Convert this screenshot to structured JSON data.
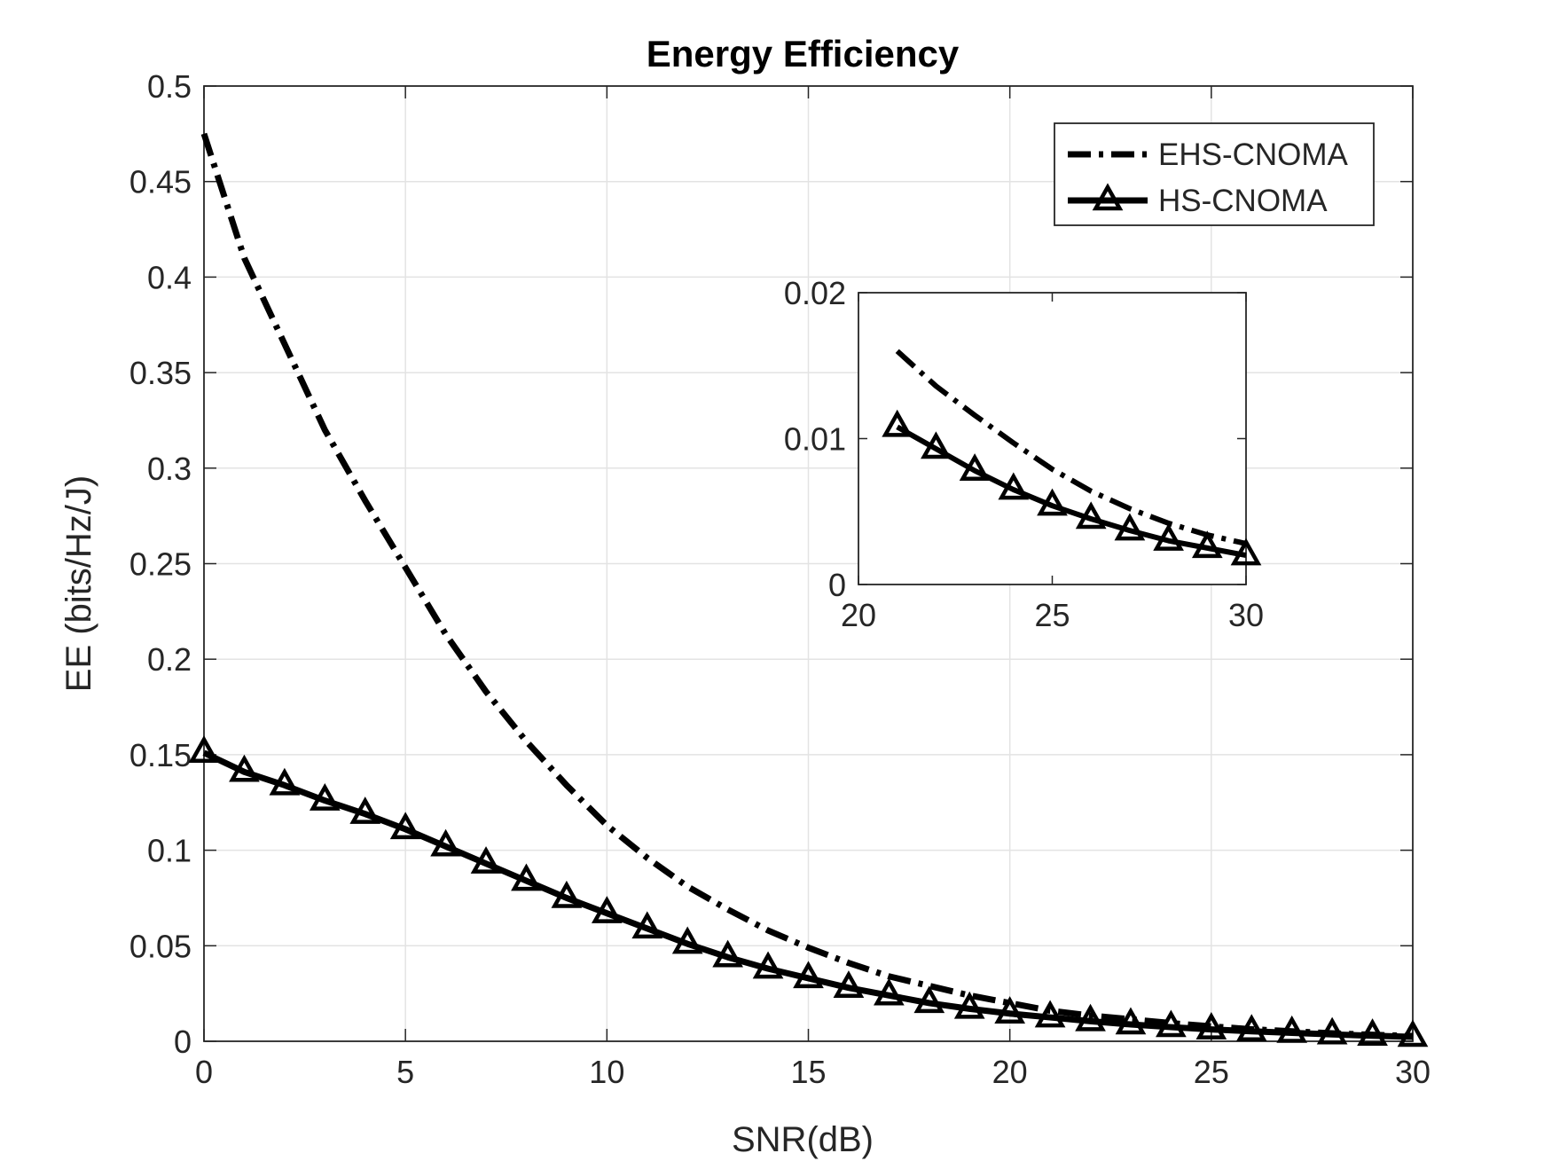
{
  "chart_data": [
    {
      "type": "line",
      "title": "Energy Efficiency",
      "xlabel": "SNR(dB)",
      "ylabel": "EE (bits/Hz/J)",
      "xlim": [
        0,
        30
      ],
      "ylim": [
        0,
        0.5
      ],
      "xticks": [
        0,
        5,
        10,
        15,
        20,
        25,
        30
      ],
      "yticks": [
        0,
        0.05,
        0.1,
        0.15,
        0.2,
        0.25,
        0.3,
        0.35,
        0.4,
        0.45,
        0.5
      ],
      "xtick_labels": [
        "0",
        "5",
        "10",
        "15",
        "20",
        "25",
        "30"
      ],
      "ytick_labels": [
        "0",
        "0.05",
        "0.1",
        "0.15",
        "0.2",
        "0.25",
        "0.3",
        "0.35",
        "0.4",
        "0.45",
        "0.5"
      ],
      "grid": true,
      "legend_position": "top-right",
      "x": [
        0,
        1,
        2,
        3,
        4,
        5,
        6,
        7,
        8,
        9,
        10,
        11,
        12,
        13,
        14,
        15,
        16,
        17,
        18,
        19,
        20,
        21,
        22,
        23,
        24,
        25,
        26,
        27,
        28,
        29,
        30
      ],
      "series": [
        {
          "name": "EHS-CNOMA",
          "line_style": "dash-dot",
          "marker": "none",
          "color": "#000000",
          "values": [
            0.475,
            0.41,
            0.365,
            0.32,
            0.283,
            0.248,
            0.213,
            0.183,
            0.157,
            0.134,
            0.113,
            0.096,
            0.081,
            0.069,
            0.058,
            0.049,
            0.041,
            0.034,
            0.029,
            0.024,
            0.02,
            0.016,
            0.0135,
            0.0115,
            0.0095,
            0.0078,
            0.0063,
            0.0052,
            0.0042,
            0.0034,
            0.0028
          ]
        },
        {
          "name": "HS-CNOMA",
          "line_style": "solid",
          "marker": "triangle",
          "color": "#000000",
          "values": [
            0.151,
            0.141,
            0.134,
            0.126,
            0.119,
            0.111,
            0.102,
            0.093,
            0.084,
            0.075,
            0.067,
            0.059,
            0.051,
            0.044,
            0.038,
            0.033,
            0.028,
            0.024,
            0.02,
            0.017,
            0.0145,
            0.0125,
            0.0105,
            0.0088,
            0.0074,
            0.0062,
            0.0052,
            0.0044,
            0.0036,
            0.0029,
            0.0023
          ]
        }
      ]
    },
    {
      "type": "line",
      "title": "",
      "xlabel": "",
      "ylabel": "",
      "xlim": [
        20,
        30
      ],
      "ylim": [
        0,
        0.02
      ],
      "xticks": [
        20,
        25,
        30
      ],
      "yticks": [
        0,
        0.01,
        0.02
      ],
      "xtick_labels": [
        "20",
        "25",
        "30"
      ],
      "ytick_labels": [
        "0",
        "0.01",
        "0.02"
      ],
      "grid": false,
      "x": [
        21,
        22,
        23,
        24,
        25,
        26,
        27,
        28,
        29,
        30
      ],
      "series": [
        {
          "line_style": "dash-dot",
          "marker": "none",
          "color": "#000000",
          "values": [
            0.016,
            0.0136,
            0.0116,
            0.0097,
            0.0079,
            0.0064,
            0.0052,
            0.0042,
            0.0034,
            0.0028
          ]
        },
        {
          "line_style": "solid",
          "marker": "triangle",
          "color": "#000000",
          "values": [
            0.0108,
            0.0093,
            0.0078,
            0.0065,
            0.0054,
            0.0045,
            0.0037,
            0.003,
            0.0025,
            0.002
          ]
        }
      ]
    }
  ]
}
